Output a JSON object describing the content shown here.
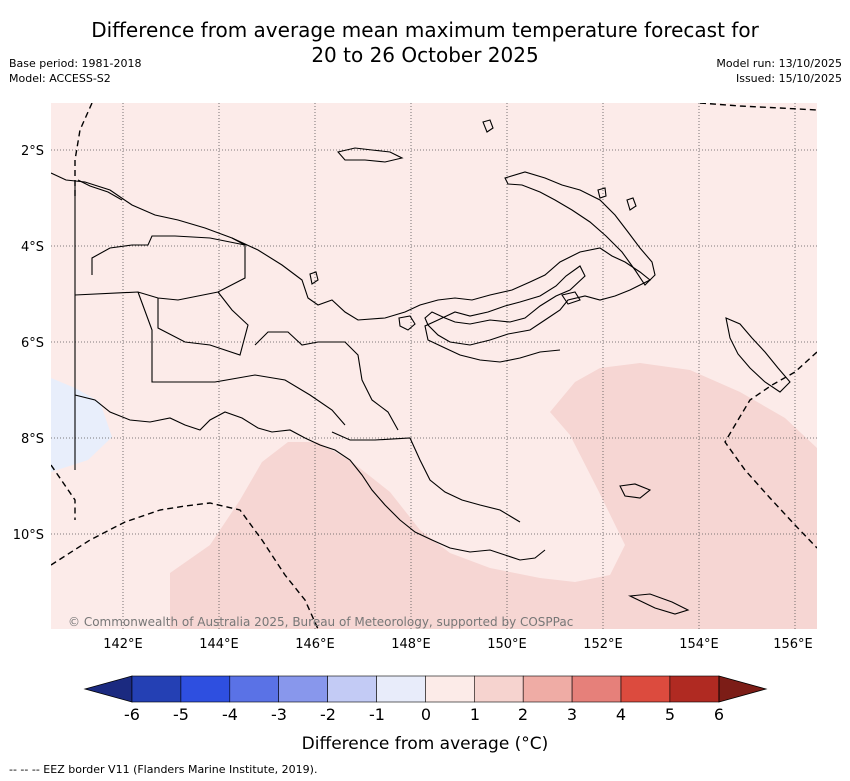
{
  "title": {
    "line1": "Difference from average mean maximum temperature forecast for",
    "line2": "20 to 26 October 2025"
  },
  "meta": {
    "base_period": "Base period: 1981-2018",
    "model": "Model: ACCESS-S2",
    "model_run": "Model run: 13/10/2025",
    "issued": "Issued: 15/10/2025"
  },
  "map": {
    "region": "Papua New Guinea",
    "credit": "© Commonwealth of Australia 2025, Bureau of Meteorology, supported by COSPPac",
    "lat_labels": [
      "2°S",
      "4°S",
      "6°S",
      "8°S",
      "10°S"
    ],
    "lon_labels": [
      "142°E",
      "144°E",
      "146°E",
      "148°E",
      "150°E",
      "152°E",
      "154°E",
      "156°E"
    ],
    "colors": {
      "bin_0_1": "#fcebe9",
      "bin_1_2": "#f6d6d3",
      "bin_m1_0": "#e8eefb"
    }
  },
  "legend": {
    "tick_labels": [
      "-6",
      "-5",
      "-4",
      "-3",
      "-2",
      "-1",
      "0",
      "1",
      "2",
      "3",
      "4",
      "5",
      "6"
    ],
    "colors": [
      "#1b2a80",
      "#2440b4",
      "#2e4fe0",
      "#5a72e6",
      "#8897ec",
      "#c3cbf5",
      "#e8ecfa",
      "#fcebe8",
      "#f6d3cf",
      "#efaca5",
      "#e6807a",
      "#dc4b3e",
      "#b02a22",
      "#7c1d17"
    ],
    "label": "Difference from average (°C)"
  },
  "footnote": "--  --  -- EEZ border V11 (Flanders Marine Institute, 2019)."
}
